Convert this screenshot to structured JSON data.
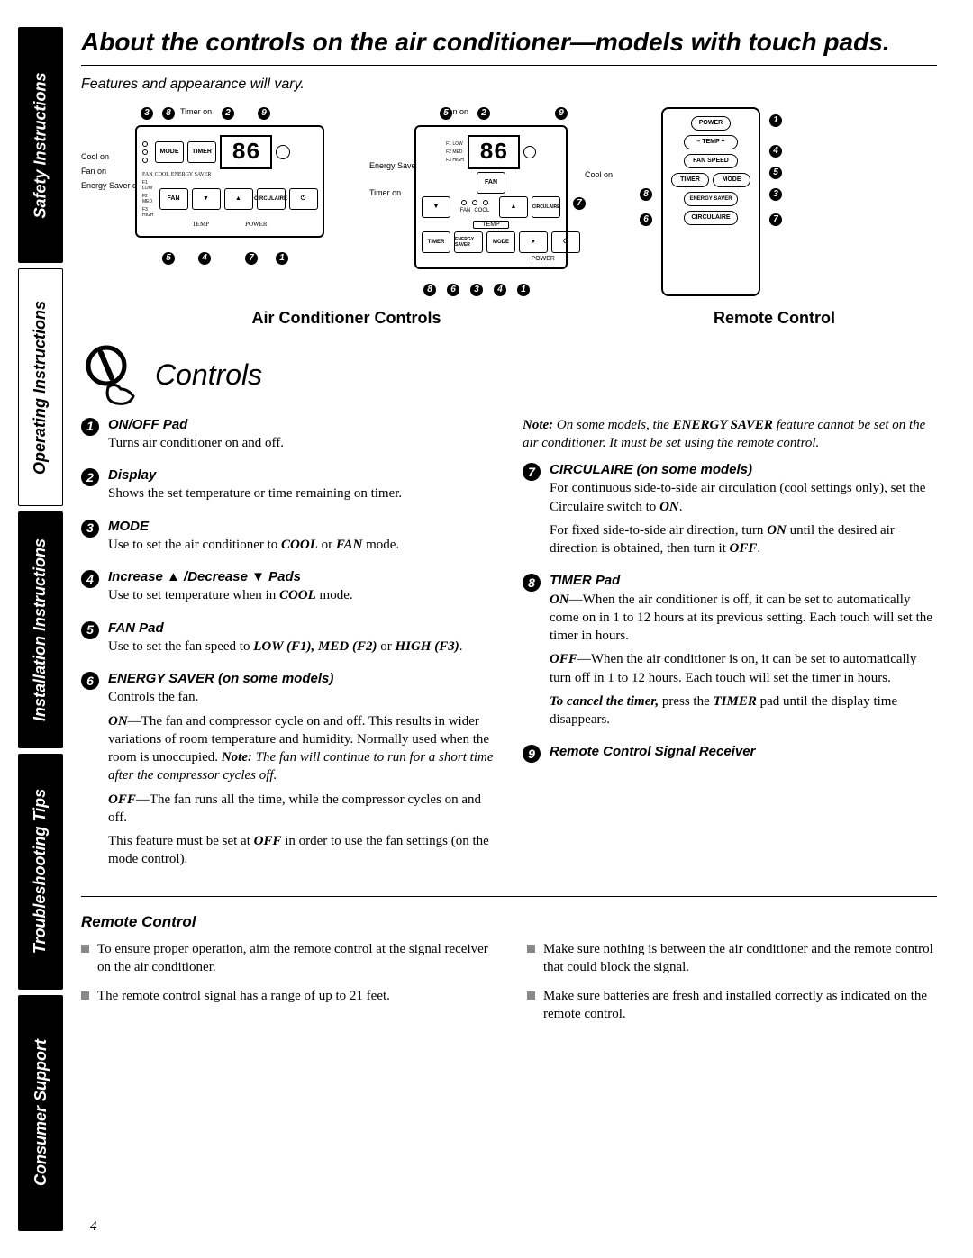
{
  "page_number": "4",
  "side_tabs": [
    {
      "label": "Safety Instructions",
      "style": "black"
    },
    {
      "label": "Operating Instructions",
      "style": "white"
    },
    {
      "label": "Installation Instructions",
      "style": "black"
    },
    {
      "label": "Troubleshooting Tips",
      "style": "black"
    },
    {
      "label": "Consumer Support",
      "style": "black"
    }
  ],
  "title": "About the controls on the air conditioner—models with touch pads.",
  "subtitle": "Features and appearance will vary.",
  "diagrams": {
    "panel1": {
      "display_value": "86",
      "buttons": [
        "MODE",
        "TIMER",
        "FAN",
        "CIRCULAIRE"
      ],
      "leds_left": [
        "Cool on",
        "Fan on",
        "Energy Saver on"
      ],
      "leds_small": [
        "F1 LOW",
        "F2 MED",
        "F3 HIGH"
      ],
      "temp_label": "TEMP",
      "power_label": "POWER",
      "timer_on": "Timer on",
      "callouts": [
        "1",
        "2",
        "3",
        "4",
        "5",
        "6",
        "7",
        "8",
        "9"
      ]
    },
    "panel2": {
      "display_value": "86",
      "buttons": [
        "FAN",
        "TIMER",
        "ENERGY SAVER",
        "MODE",
        "CIRCULAIRE"
      ],
      "leds_top": [
        "F1 LOW",
        "F2 MED",
        "F3 HIGH"
      ],
      "leds_right": [
        "Fan on",
        "Cool on"
      ],
      "leds_left": [
        "Energy Saver on",
        "Timer on"
      ],
      "labels": [
        "FAN",
        "COOL",
        "TEMP",
        "POWER"
      ]
    },
    "remote": {
      "buttons": [
        "POWER",
        "– TEMP +",
        "FAN SPEED",
        "TIMER",
        "MODE",
        "ENERGY SAVER",
        "CIRCULAIRE"
      ],
      "callouts": [
        "1",
        "3",
        "4",
        "5",
        "6",
        "7",
        "8"
      ]
    },
    "label_ac": "Air Conditioner Controls",
    "label_remote": "Remote Control"
  },
  "controls_heading": "Controls",
  "controls_left": [
    {
      "n": "1",
      "title": "ON/OFF Pad",
      "body": [
        {
          "text": "Turns air conditioner on and off."
        }
      ]
    },
    {
      "n": "2",
      "title": "Display",
      "body": [
        {
          "text": "Shows the set temperature or time remaining on timer."
        }
      ]
    },
    {
      "n": "3",
      "title": "MODE",
      "body": [
        {
          "html": "Use to set the air conditioner to <b><i>COOL</i></b> or <b><i>FAN</i></b> mode."
        }
      ]
    },
    {
      "n": "4",
      "title": "Increase ▲ /Decrease ▼ Pads",
      "body": [
        {
          "html": "Use to set temperature when in <b><i>COOL</i></b> mode."
        }
      ]
    },
    {
      "n": "5",
      "title": "FAN Pad",
      "body": [
        {
          "html": "Use to set the fan speed to <b><i>LOW (F1), MED (F2)</i></b> or <b><i>HIGH (F3)</i></b>."
        }
      ]
    },
    {
      "n": "6",
      "title": "ENERGY SAVER (on some models)",
      "body": [
        {
          "text": "Controls the fan."
        },
        {
          "html": "<b><i>ON</i></b>—The fan and compressor cycle on and off. This results in wider variations of room temperature and humidity. Normally used when the room is unoccupied. <b><i>Note:</i></b> <i>The fan will continue to run for a short time after the compressor cycles off.</i>"
        },
        {
          "html": "<b><i>OFF</i></b>—The fan runs all the time, while the compressor cycles on and off."
        },
        {
          "html": "This feature must be set at <b><i>OFF</i></b> in order to use the fan settings (on the mode control)."
        }
      ]
    }
  ],
  "controls_right_note": "<b><i>Note:</i></b> <i>On some models, the <b>ENERGY SAVER</b> feature cannot be set on the air conditioner. It must be set using the remote control.</i>",
  "controls_right": [
    {
      "n": "7",
      "title": "CIRCULAIRE (on some models)",
      "body": [
        {
          "html": "For continuous side-to-side air circulation (cool settings only), set the Circulaire switch to <b><i>ON</i></b>."
        },
        {
          "html": "For fixed side-to-side air direction, turn <b><i>ON</i></b> until the desired air direction is obtained, then turn it <b><i>OFF</i></b>."
        }
      ]
    },
    {
      "n": "8",
      "title": "TIMER Pad",
      "body": [
        {
          "html": "<b><i>ON</i></b>—When the air conditioner is off, it can be set to automatically come on in 1 to 12 hours at its previous setting. Each touch will set the timer in hours."
        },
        {
          "html": "<b><i>OFF</i></b>—When the air conditioner is on, it can be set to automatically turn off in 1 to 12 hours. Each touch will set the timer in hours."
        },
        {
          "html": "<b><i>To cancel the timer,</i></b> press the <b><i>TIMER</i></b> pad until the display time disappears."
        }
      ]
    },
    {
      "n": "9",
      "title": "Remote Control Signal Receiver",
      "body": []
    }
  ],
  "remote_section": {
    "title": "Remote Control",
    "left": [
      "To ensure proper operation, aim the remote control at the signal receiver on the air conditioner.",
      "The remote control signal has a range of up to 21 feet."
    ],
    "right": [
      "Make sure nothing is between the air conditioner and the remote control that could block the signal.",
      "Make sure batteries are fresh and installed correctly as indicated on the remote control."
    ]
  },
  "colors": {
    "black": "#000000",
    "white": "#ffffff",
    "grey_bullet": "#888888"
  },
  "typography": {
    "heading_family": "Arial",
    "body_family": "Georgia",
    "h1_size": 28,
    "h2_size": 32,
    "body_size": 15
  }
}
